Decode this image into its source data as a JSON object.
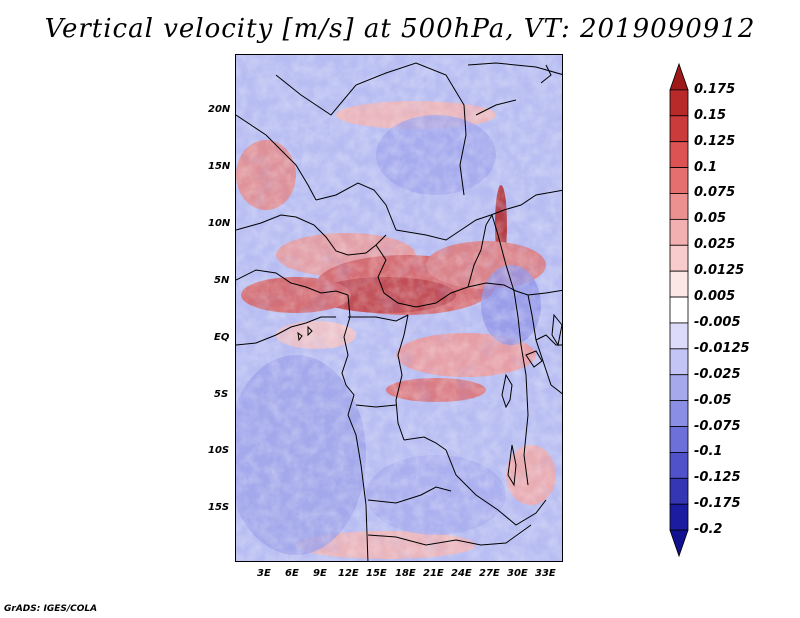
{
  "title": "Vertical velocity [m/s] at 500hPa, VT: 2019090912",
  "footer": "GrADS: IGES/COLA",
  "lat_ticks": [
    "20N",
    "15N",
    "10N",
    "5N",
    "EQ",
    "5S",
    "10S",
    "15S"
  ],
  "lon_ticks": [
    "3E",
    "6E",
    "9E",
    "12E",
    "15E",
    "18E",
    "21E",
    "24E",
    "27E",
    "30E",
    "33E"
  ],
  "colorbar": {
    "labels": [
      "0.175",
      "0.15",
      "0.125",
      "0.1",
      "0.075",
      "0.05",
      "0.025",
      "0.0125",
      "0.005",
      "-0.005",
      "-0.0125",
      "-0.025",
      "-0.05",
      "-0.075",
      "-0.1",
      "-0.125",
      "-0.175",
      "-0.2"
    ],
    "colors": [
      "#9e1a1a",
      "#b82a2a",
      "#cc3b3b",
      "#dd5252",
      "#e56f6f",
      "#ed9090",
      "#f3b0b0",
      "#f8cccc",
      "#fce6e6",
      "#ffffff",
      "#dcdcfa",
      "#c3c5f4",
      "#a6a9ec",
      "#8a8ee4",
      "#6d70d9",
      "#5052c9",
      "#3436b4",
      "#1c1ca0",
      "#101090"
    ]
  }
}
